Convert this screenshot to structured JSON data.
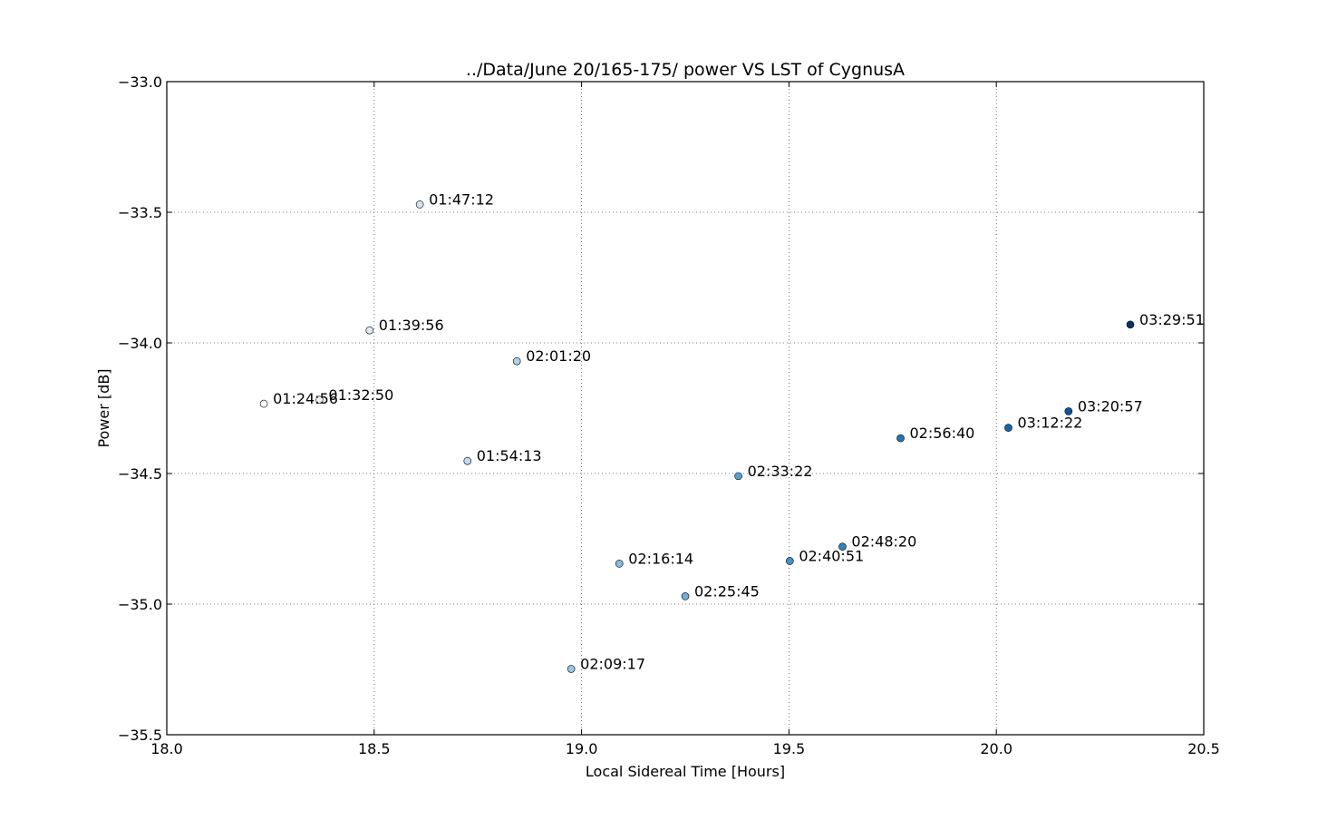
{
  "chart_data": {
    "type": "scatter",
    "title": "../Data/June 20/165-175/  power VS LST of CygnusA",
    "xlabel": "Local Sidereal Time [Hours]",
    "ylabel": "Power [dB]",
    "xlim": [
      18.0,
      20.5
    ],
    "ylim": [
      -35.5,
      -33.0
    ],
    "xticks": [
      "18.0",
      "18.5",
      "19.0",
      "19.5",
      "20.0",
      "20.5"
    ],
    "yticks": [
      "−33.0",
      "−33.5",
      "−34.0",
      "−34.5",
      "−35.0",
      "−35.5"
    ],
    "grid": true,
    "colormap": "Blues",
    "points": [
      {
        "x": 18.234,
        "y": -34.233,
        "label": "01:24:56",
        "color": "#f7fbff"
      },
      {
        "x": 18.368,
        "y": -34.218,
        "label": "01:32:50",
        "color": "#eaf3fb"
      },
      {
        "x": 18.489,
        "y": -33.952,
        "label": "01:39:56",
        "color": "#dfecf7"
      },
      {
        "x": 18.61,
        "y": -33.47,
        "label": "01:47:12",
        "color": "#d1e3f3"
      },
      {
        "x": 18.725,
        "y": -34.452,
        "label": "01:54:13",
        "color": "#c2d9ee"
      },
      {
        "x": 18.844,
        "y": -34.07,
        "label": "02:01:20",
        "color": "#b0d2e8"
      },
      {
        "x": 18.975,
        "y": -35.248,
        "label": "02:09:17",
        "color": "#9cc7e2"
      },
      {
        "x": 19.091,
        "y": -34.845,
        "label": "02:16:14",
        "color": "#87bddc"
      },
      {
        "x": 19.25,
        "y": -34.97,
        "label": "02:25:45",
        "color": "#6eaed6"
      },
      {
        "x": 19.378,
        "y": -34.51,
        "label": "02:33:22",
        "color": "#5aa0cf"
      },
      {
        "x": 19.502,
        "y": -34.835,
        "label": "02:40:51",
        "color": "#4592c6"
      },
      {
        "x": 19.629,
        "y": -34.78,
        "label": "02:48:20",
        "color": "#3383be"
      },
      {
        "x": 19.769,
        "y": -34.365,
        "label": "02:56:40",
        "color": "#2474b7"
      },
      {
        "x": 20.029,
        "y": -34.325,
        "label": "03:12:22",
        "color": "#1764ab"
      },
      {
        "x": 20.174,
        "y": -34.262,
        "label": "03:20:57",
        "color": "#0c559e"
      },
      {
        "x": 20.323,
        "y": -33.93,
        "label": "03:29:51",
        "color": "#08306b"
      }
    ]
  }
}
